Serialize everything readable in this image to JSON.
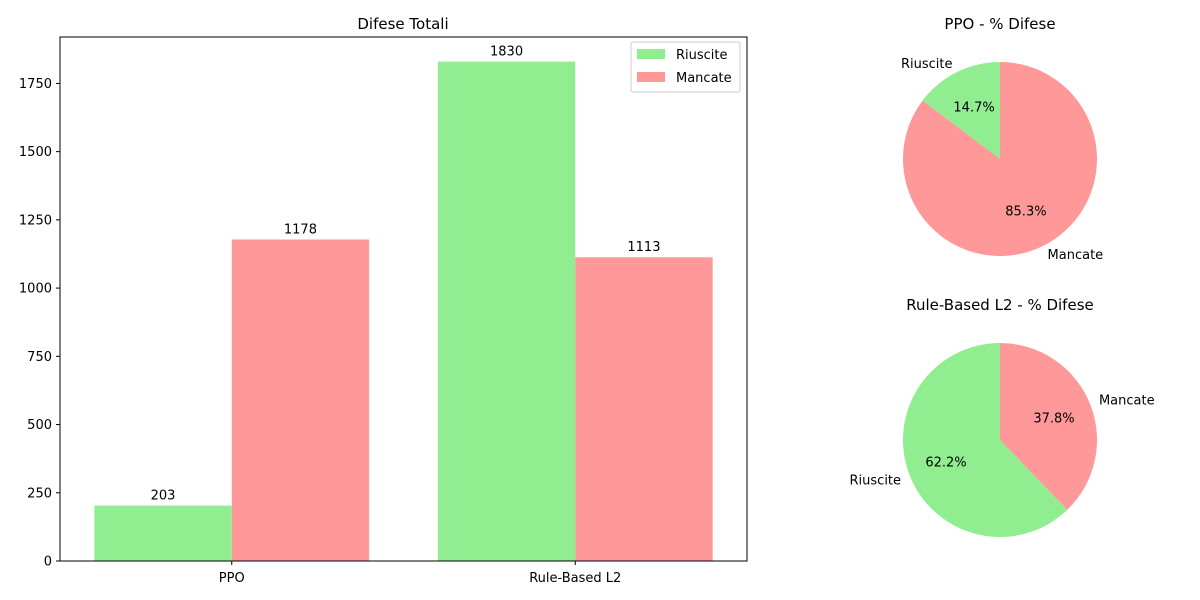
{
  "chart_data": [
    {
      "type": "bar",
      "title": "Difese Totali",
      "categories": [
        "PPO",
        "Rule-Based L2"
      ],
      "series": [
        {
          "name": "Riuscite",
          "values": [
            203,
            1830
          ],
          "color": "#90ee90"
        },
        {
          "name": "Mancate",
          "values": [
            1178,
            1113
          ],
          "color": "#ff9999"
        }
      ],
      "data_labels": [
        [
          "203",
          "1830"
        ],
        [
          "1178",
          "1113"
        ]
      ],
      "ylim": [
        0,
        1920
      ],
      "yticks": [
        0,
        250,
        500,
        750,
        1000,
        1250,
        1500,
        1750
      ],
      "ytick_labels": [
        "0",
        "250",
        "500",
        "750",
        "1000",
        "1250",
        "1500",
        "1750"
      ],
      "grid": false,
      "legend": "top-right"
    },
    {
      "type": "pie",
      "title": "PPO - % Difese",
      "labels": [
        "Riuscite",
        "Mancate"
      ],
      "values": [
        14.7,
        85.3
      ],
      "pct_labels": [
        "14.7%",
        "85.3%"
      ],
      "colors": [
        "#90ee90",
        "#ff9999"
      ]
    },
    {
      "type": "pie",
      "title": "Rule-Based L2 - % Difese",
      "labels": [
        "Riuscite",
        "Mancate"
      ],
      "values": [
        62.2,
        37.8
      ],
      "pct_labels": [
        "62.2%",
        "37.8%"
      ],
      "colors": [
        "#90ee90",
        "#ff9999"
      ]
    }
  ]
}
